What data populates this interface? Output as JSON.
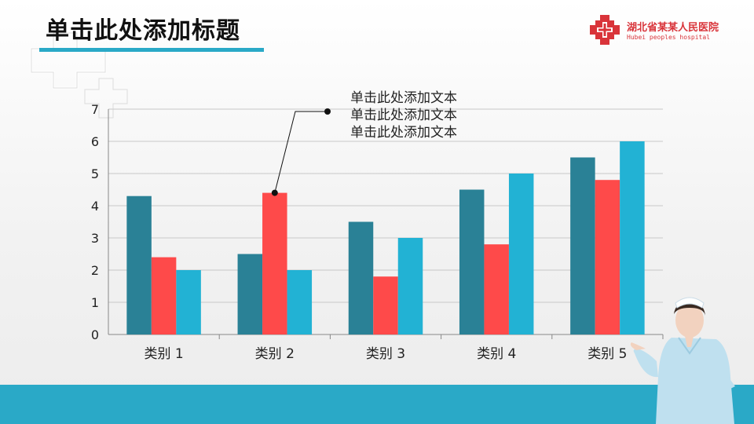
{
  "title": "单击此处添加标题",
  "logo": {
    "name": "湖北省某某人民医院",
    "subtitle": "Hubei peoples hospital"
  },
  "annotation": {
    "lines": [
      "单击此处添加文本",
      "单击此处添加文本",
      "单击此处添加文本"
    ]
  },
  "colors": {
    "accent": "#2aa9c7",
    "series_teal_dark": "#2a8196",
    "series_red": "#fe4a4a",
    "series_cyan": "#22b2d4",
    "logo_red": "#d9343a"
  },
  "chart_data": {
    "type": "bar",
    "categories": [
      "类别 1",
      "类别 2",
      "类别 3",
      "类别 4",
      "类别 5"
    ],
    "series": [
      {
        "values": [
          4.3,
          2.5,
          3.5,
          4.5,
          5.5
        ]
      },
      {
        "values": [
          2.4,
          4.4,
          1.8,
          2.8,
          4.8
        ]
      },
      {
        "values": [
          2.0,
          2.0,
          3.0,
          5.0,
          6.0
        ]
      }
    ],
    "ylim": [
      0,
      7
    ],
    "yticks": [
      "0",
      "1",
      "2",
      "3",
      "4",
      "5",
      "6",
      "7"
    ],
    "grid": true,
    "legend": "none"
  }
}
